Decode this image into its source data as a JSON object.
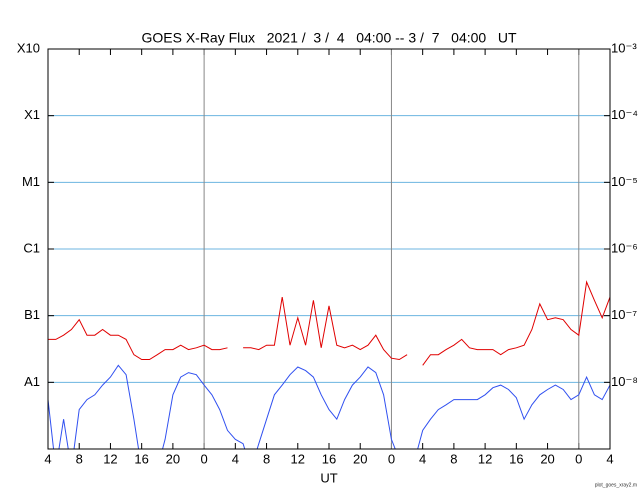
{
  "chart_data": {
    "type": "line",
    "title": "GOES X-Ray Flux   2021 /  3 /  4   04:00 -- 3 /  7   04:00   UT",
    "xlabel": "UT",
    "footnote": "plot_goes_xray2.m",
    "x": [
      0,
      1,
      2,
      3,
      4,
      5,
      6,
      7,
      8,
      9,
      10,
      11,
      12,
      13,
      14,
      15,
      16,
      17,
      18,
      19,
      20,
      21,
      22,
      23,
      24,
      25,
      26,
      27,
      28,
      29,
      30,
      31,
      32,
      33,
      34,
      35,
      36,
      37,
      38,
      39,
      40,
      41,
      42,
      43,
      44,
      45,
      46,
      47,
      48,
      49,
      50,
      51,
      52,
      53,
      54,
      55,
      56,
      57,
      58,
      59,
      60,
      61,
      62,
      63,
      64,
      65,
      66,
      67,
      68,
      69,
      70,
      71,
      72
    ],
    "xlim": [
      0,
      72
    ],
    "xticks": [
      {
        "value": 0,
        "label": "4"
      },
      {
        "value": 4,
        "label": "8"
      },
      {
        "value": 8,
        "label": "12"
      },
      {
        "value": 12,
        "label": "16"
      },
      {
        "value": 16,
        "label": "20"
      },
      {
        "value": 20,
        "label": "0"
      },
      {
        "value": 24,
        "label": "4"
      },
      {
        "value": 28,
        "label": "8"
      },
      {
        "value": 32,
        "label": "12"
      },
      {
        "value": 36,
        "label": "16"
      },
      {
        "value": 40,
        "label": "20"
      },
      {
        "value": 44,
        "label": "0"
      },
      {
        "value": 48,
        "label": "4"
      },
      {
        "value": 52,
        "label": "8"
      },
      {
        "value": 56,
        "label": "12"
      },
      {
        "value": 60,
        "label": "16"
      },
      {
        "value": 64,
        "label": "20"
      },
      {
        "value": 68,
        "label": "0"
      },
      {
        "value": 72,
        "label": "4"
      }
    ],
    "log_y": true,
    "ylim": [
      1e-09,
      0.001
    ],
    "yticks": [
      {
        "value": 0.001,
        "label": "X10"
      },
      {
        "value": 0.0001,
        "label": "X1"
      },
      {
        "value": 1e-05,
        "label": "M1"
      },
      {
        "value": 1e-06,
        "label": "C1"
      },
      {
        "value": 1e-07,
        "label": "B1"
      },
      {
        "value": 1e-08,
        "label": "A1"
      }
    ],
    "y2lim": [
      1e-09,
      0.001
    ],
    "y2ticks": [
      {
        "value": 0.001,
        "label": "10⁻³"
      },
      {
        "value": 0.0001,
        "label": "10⁻⁴"
      },
      {
        "value": 1e-05,
        "label": "10⁻⁵"
      },
      {
        "value": 1e-06,
        "label": "10⁻⁶"
      },
      {
        "value": 1e-07,
        "label": "10⁻⁷"
      },
      {
        "value": 1e-08,
        "label": "10⁻⁸"
      }
    ],
    "grid": true,
    "grid_color": "#6cb4e0",
    "series": [
      {
        "color": "#e00000",
        "values": [
          4.4e-08,
          4.4e-08,
          5.1e-08,
          6.2e-08,
          8.7e-08,
          5.1e-08,
          5.1e-08,
          6.2e-08,
          5.1e-08,
          5.1e-08,
          4.4e-08,
          2.6e-08,
          2.2e-08,
          2.2e-08,
          2.6e-08,
          3.1e-08,
          3.1e-08,
          3.6e-08,
          3.1e-08,
          3.3e-08,
          3.6e-08,
          3.1e-08,
          3.1e-08,
          3.3e-08,
          null,
          3.3e-08,
          3.3e-08,
          3.1e-08,
          3.6e-08,
          3.6e-08,
          1.9e-07,
          3.6e-08,
          9.3e-08,
          3.6e-08,
          1.7e-07,
          3.3e-08,
          1.4e-07,
          3.6e-08,
          3.3e-08,
          3.6e-08,
          3.1e-08,
          3.6e-08,
          5.1e-08,
          3.1e-08,
          2.3e-08,
          2.2e-08,
          2.6e-08,
          null,
          1.8e-08,
          2.6e-08,
          2.6e-08,
          3.1e-08,
          3.6e-08,
          4.4e-08,
          3.3e-08,
          3.1e-08,
          3.1e-08,
          3.1e-08,
          2.6e-08,
          3.1e-08,
          3.3e-08,
          3.6e-08,
          6.2e-08,
          1.5e-07,
          8.7e-08,
          9.3e-08,
          8.7e-08,
          6.2e-08,
          5.1e-08,
          3.2e-07,
          1.7e-07,
          9.3e-08,
          1.9e-07
        ]
      },
      {
        "color": "#3050f0",
        "values": [
          5.5e-09,
          5e-10,
          2.8e-09,
          5e-10,
          3.9e-09,
          5.5e-09,
          6.5e-09,
          9.1e-09,
          1.2e-08,
          1.8e-08,
          1.3e-08,
          2.8e-09,
          5e-10,
          5e-10,
          5e-10,
          1.4e-09,
          6.5e-09,
          1.2e-08,
          1.4e-08,
          1.3e-08,
          9.1e-09,
          6.5e-09,
          3.9e-09,
          1.9e-09,
          1.4e-09,
          1.2e-09,
          5e-10,
          1.2e-09,
          2.8e-09,
          6.5e-09,
          9.1e-09,
          1.3e-08,
          1.7e-08,
          1.5e-08,
          1.2e-08,
          6.5e-09,
          3.9e-09,
          2.8e-09,
          5.5e-09,
          9.1e-09,
          1.2e-08,
          1.7e-08,
          1.4e-08,
          6.5e-09,
          1.4e-09,
          7e-10,
          5e-10,
          7e-10,
          1.9e-09,
          2.8e-09,
          3.9e-09,
          4.6e-09,
          5.5e-09,
          5.5e-09,
          5.5e-09,
          5.5e-09,
          6.5e-09,
          8.3e-09,
          9.1e-09,
          7.8e-09,
          5.9e-09,
          2.8e-09,
          4.6e-09,
          6.5e-09,
          7.8e-09,
          9.1e-09,
          7.8e-09,
          5.5e-09,
          6.5e-09,
          1.2e-08,
          6.5e-09,
          5.5e-09,
          9.1e-09
        ]
      }
    ]
  }
}
